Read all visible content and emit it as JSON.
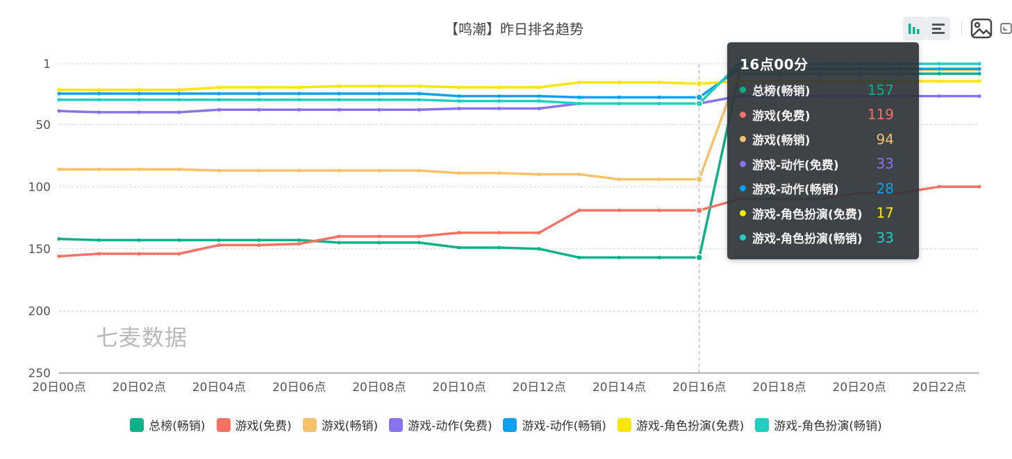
{
  "chart_data": {
    "type": "line",
    "title": "【鸣潮】昨日排名趋势",
    "y_inverted": true,
    "ylim": [
      1,
      250
    ],
    "yticks": [
      1,
      50,
      100,
      150,
      200,
      250
    ],
    "x_tick_labels": [
      "20日00点",
      "20日02点",
      "20日04点",
      "20日06点",
      "20日08点",
      "20日10点",
      "20日12点",
      "20日14点",
      "20日16点",
      "20日18点",
      "20日20点",
      "20日22点"
    ],
    "hours": [
      0,
      1,
      2,
      3,
      4,
      5,
      6,
      7,
      8,
      9,
      10,
      11,
      12,
      13,
      14,
      15,
      16,
      17,
      18,
      19,
      20,
      21,
      22,
      23
    ],
    "grid": "horizontal dashed",
    "legend_position": "bottom",
    "watermark": "七麦数据",
    "series": [
      {
        "name": "总榜(畅销)",
        "color": "#0bb187",
        "values": [
          142,
          143,
          143,
          143,
          143,
          143,
          143,
          145,
          145,
          145,
          149,
          149,
          150,
          157,
          157,
          157,
          157,
          9,
          9,
          9,
          9,
          9,
          9,
          9
        ]
      },
      {
        "name": "游戏(免费)",
        "color": "#f47264",
        "values": [
          156,
          154,
          154,
          154,
          147,
          147,
          146,
          140,
          140,
          140,
          137,
          137,
          137,
          119,
          119,
          119,
          119,
          110,
          110,
          110,
          105,
          105,
          100,
          100
        ]
      },
      {
        "name": "游戏(畅销)",
        "color": "#f7c06b",
        "values": [
          86,
          86,
          86,
          86,
          87,
          87,
          87,
          87,
          87,
          87,
          89,
          89,
          90,
          90,
          94,
          94,
          94,
          6,
          6,
          6,
          6,
          6,
          6,
          6
        ]
      },
      {
        "name": "游戏-动作(免费)",
        "color": "#8a71ee",
        "values": [
          39,
          40,
          40,
          40,
          38,
          38,
          38,
          38,
          38,
          38,
          37,
          37,
          37,
          33,
          33,
          33,
          33,
          27,
          27,
          27,
          27,
          27,
          27,
          27
        ]
      },
      {
        "name": "游戏-动作(畅销)",
        "color": "#0ba1f0",
        "values": [
          25,
          25,
          25,
          25,
          25,
          25,
          25,
          25,
          25,
          25,
          27,
          27,
          27,
          28,
          28,
          28,
          28,
          5,
          5,
          5,
          5,
          5,
          5,
          5
        ]
      },
      {
        "name": "游戏-角色扮演(免费)",
        "color": "#ffe600",
        "values": [
          22,
          22,
          22,
          22,
          20,
          20,
          20,
          19,
          19,
          19,
          20,
          20,
          20,
          16,
          16,
          16,
          17,
          15,
          15,
          15,
          15,
          15,
          15,
          15
        ]
      },
      {
        "name": "游戏-角色扮演(畅销)",
        "color": "#1fd0c2",
        "values": [
          30,
          30,
          30,
          30,
          30,
          30,
          30,
          30,
          30,
          30,
          31,
          31,
          31,
          33,
          33,
          33,
          33,
          1,
          1,
          1,
          1,
          1,
          1,
          1
        ]
      }
    ]
  },
  "tooltip": {
    "title": "16点00分",
    "rows": [
      {
        "name": "总榜(畅销)",
        "value": "157",
        "color": "#0bb187"
      },
      {
        "name": "游戏(免费)",
        "value": "119",
        "color": "#f47264"
      },
      {
        "name": "游戏(畅销)",
        "value": "94",
        "color": "#f7c06b"
      },
      {
        "name": "游戏-动作(免费)",
        "value": "33",
        "color": "#8a71ee"
      },
      {
        "name": "游戏-动作(畅销)",
        "value": "28",
        "color": "#0ba1f0"
      },
      {
        "name": "游戏-角色扮演(免费)",
        "value": "17",
        "color": "#ffe600"
      },
      {
        "name": "游戏-角色扮演(畅销)",
        "value": "33",
        "color": "#1fd0c2"
      }
    ]
  },
  "toolbar": {
    "buttons": [
      {
        "icon": "bar-chart-icon",
        "active": true
      },
      {
        "icon": "list-icon",
        "active": true
      },
      {
        "icon": "image-icon",
        "active": false
      },
      {
        "icon": "export-icon",
        "active": false
      }
    ]
  }
}
